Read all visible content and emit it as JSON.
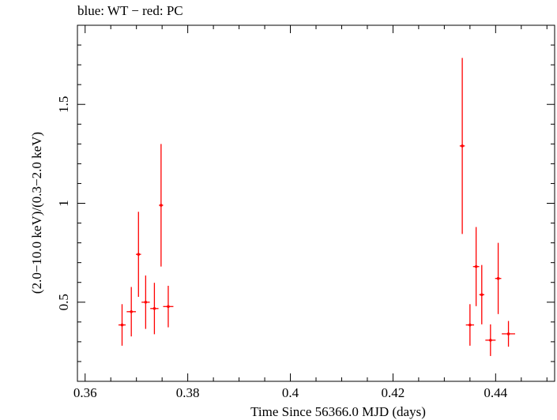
{
  "chart_data": {
    "type": "scatter",
    "title": "blue: WT − red: PC",
    "xlabel": "Time Since 56366.0 MJD (days)",
    "ylabel": "(2.0−10.0 keV)/(0.3−2.0 keV)",
    "xlim": [
      0.3585,
      0.4515
    ],
    "ylim": [
      0.1,
      1.9
    ],
    "x_ticks": [
      0.36,
      0.38,
      0.4,
      0.42,
      0.44
    ],
    "x_tick_labels": [
      "0.36",
      "0.38",
      "0.4",
      "0.42",
      "0.44"
    ],
    "y_ticks": [
      0.5,
      1.0,
      1.5
    ],
    "y_tick_labels": [
      "0.5",
      "1",
      "1.5"
    ],
    "grid": false,
    "series": [
      {
        "color": "#ff0000",
        "points": [
          {
            "x": 0.3672,
            "xerr": 0.0007,
            "y": 0.385,
            "yerr_lo": 0.105,
            "yerr_hi": 0.105
          },
          {
            "x": 0.369,
            "xerr": 0.0009,
            "y": 0.452,
            "yerr_lo": 0.125,
            "yerr_hi": 0.125
          },
          {
            "x": 0.3704,
            "xerr": 0.0005,
            "y": 0.742,
            "yerr_lo": 0.215,
            "yerr_hi": 0.215
          },
          {
            "x": 0.3718,
            "xerr": 0.0008,
            "y": 0.5,
            "yerr_lo": 0.135,
            "yerr_hi": 0.135
          },
          {
            "x": 0.3735,
            "xerr": 0.0008,
            "y": 0.468,
            "yerr_lo": 0.13,
            "yerr_hi": 0.13
          },
          {
            "x": 0.3748,
            "xerr": 0.0004,
            "y": 0.99,
            "yerr_lo": 0.31,
            "yerr_hi": 0.31
          },
          {
            "x": 0.3762,
            "xerr": 0.001,
            "y": 0.478,
            "yerr_lo": 0.105,
            "yerr_hi": 0.105
          },
          {
            "x": 0.4335,
            "xerr": 0.0005,
            "y": 1.29,
            "yerr_lo": 0.445,
            "yerr_hi": 0.445
          },
          {
            "x": 0.435,
            "xerr": 0.0008,
            "y": 0.385,
            "yerr_lo": 0.105,
            "yerr_hi": 0.105
          },
          {
            "x": 0.4362,
            "xerr": 0.0006,
            "y": 0.68,
            "yerr_lo": 0.2,
            "yerr_hi": 0.2
          },
          {
            "x": 0.4373,
            "xerr": 0.0005,
            "y": 0.538,
            "yerr_lo": 0.15,
            "yerr_hi": 0.15
          },
          {
            "x": 0.439,
            "xerr": 0.001,
            "y": 0.308,
            "yerr_lo": 0.08,
            "yerr_hi": 0.08
          },
          {
            "x": 0.4405,
            "xerr": 0.0006,
            "y": 0.62,
            "yerr_lo": 0.18,
            "yerr_hi": 0.18
          },
          {
            "x": 0.4425,
            "xerr": 0.0013,
            "y": 0.34,
            "yerr_lo": 0.065,
            "yerr_hi": 0.065
          }
        ]
      }
    ]
  }
}
